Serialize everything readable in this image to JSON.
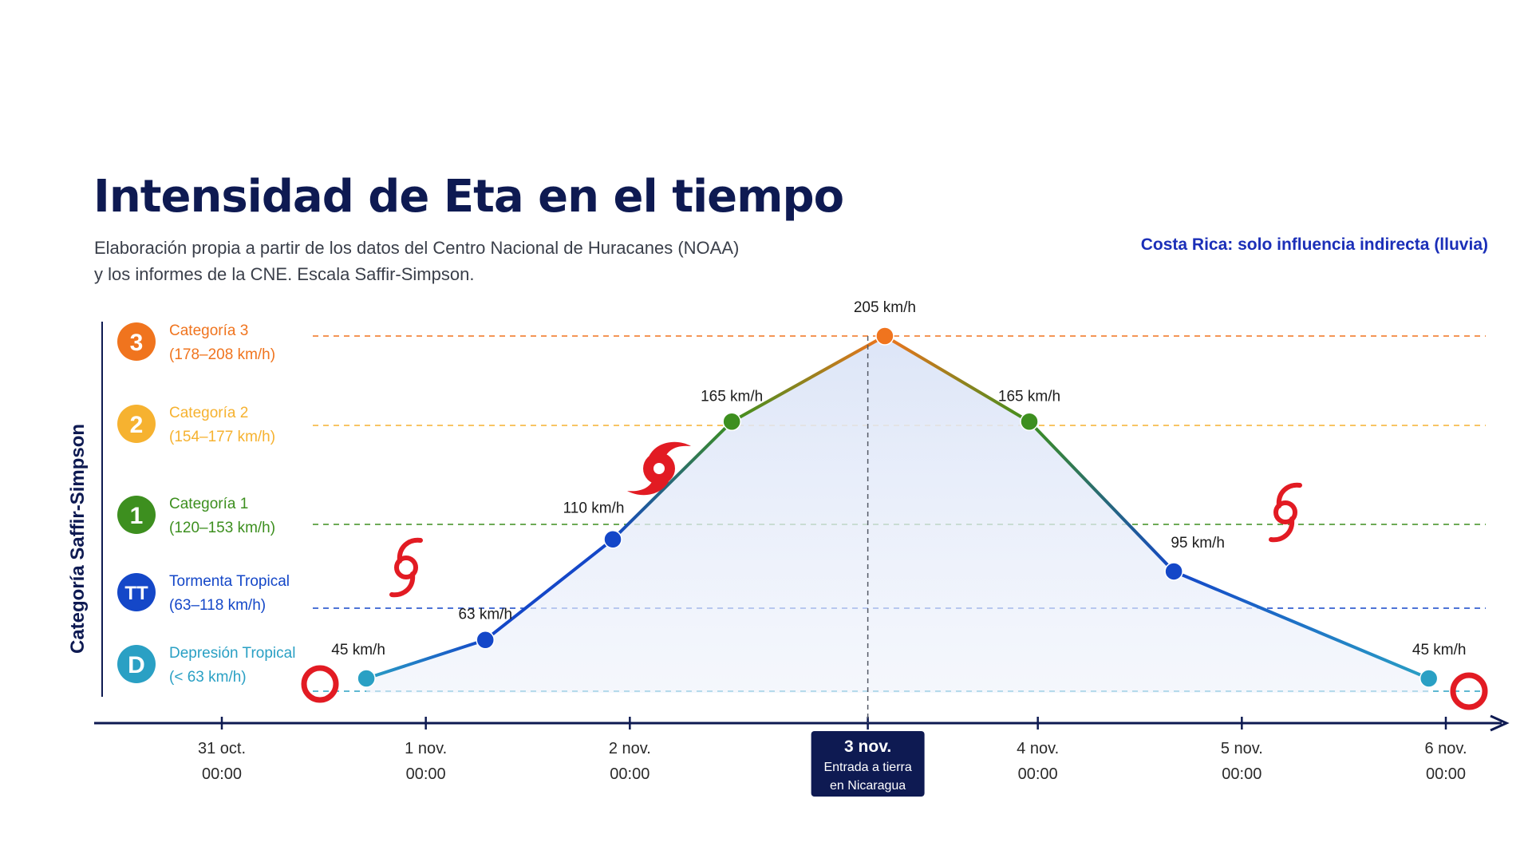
{
  "title": "Intensidad de Eta en el tiempo",
  "subtitle_lines": [
    "Elaboración propia a partir de los datos del Centro Nacional de Huracanes (NOAA)",
    "y los informes de la CNE. Escala Saffir-Simpson."
  ],
  "note": "Costa Rica: solo influencia indirecta (lluvia)",
  "colors": {
    "title": "#0e1a52",
    "cat3": "#f0741e",
    "cat2": "#f6b230",
    "cat1": "#3d8f1f",
    "tt": "#1447c8",
    "d": "#2aa0c4",
    "area_fill": "#e6edfa",
    "highlight_bg": "#0e1a52",
    "storm_icon": "#e21b23"
  },
  "chart_data": {
    "type": "line",
    "title": "Intensidad de Eta en el tiempo",
    "ylabel": "Categoría Saffir-Simpson",
    "xlabel": "",
    "x_ticks": [
      {
        "date": "31 oct.",
        "time": "00:00",
        "t": 0
      },
      {
        "date": "1 nov.",
        "time": "00:00",
        "t": 24
      },
      {
        "date": "2 nov.",
        "time": "00:00",
        "t": 48
      },
      {
        "date": "3 nov.",
        "time": "",
        "t": 76,
        "highlight": true,
        "note_lines": [
          "Entrada a tierra",
          "en Nicaragua"
        ]
      },
      {
        "date": "4 nov.",
        "time": "00:00",
        "t": 96
      },
      {
        "date": "5 nov.",
        "time": "00:00",
        "t": 120
      },
      {
        "date": "6 nov.",
        "time": "00:00",
        "t": 144
      }
    ],
    "categories": [
      {
        "badge": "3",
        "name": "Categoría 3",
        "range": "(178–208 km/h)",
        "color": "#f0741e",
        "level": 205
      },
      {
        "badge": "2",
        "name": "Categoría 2",
        "range": "(154–177 km/h)",
        "color": "#f6b230",
        "level": 165
      },
      {
        "badge": "1",
        "name": "Categoría 1",
        "range": "(120–153 km/h)",
        "color": "#3d8f1f",
        "level": 110
      },
      {
        "badge": "TT",
        "name": "Tormenta Tropical",
        "range": "(63–118 km/h)",
        "color": "#1447c8",
        "level": 63
      },
      {
        "badge": "D",
        "name": "Depresión Tropical",
        "range": "(< 63 km/h)",
        "color": "#2aa0c4",
        "level": 30
      }
    ],
    "points": [
      {
        "t": 17,
        "wind": 45,
        "label": "45 km/h",
        "color": "#2aa0c4",
        "icon": "low"
      },
      {
        "t": 31,
        "wind": 63,
        "label": "63 km/h",
        "color": "#1447c8",
        "icon": "storm"
      },
      {
        "t": 46,
        "wind": 110,
        "label": "110 km/h",
        "color": "#1447c8",
        "icon": "none"
      },
      {
        "t": 60,
        "wind": 165,
        "label": "165 km/h",
        "color": "#3d8f1f",
        "icon": "hurricane"
      },
      {
        "t": 78,
        "wind": 205,
        "label": "205 km/h",
        "color": "#f0741e",
        "icon": "none"
      },
      {
        "t": 95,
        "wind": 165,
        "label": "165 km/h",
        "color": "#3d8f1f",
        "icon": "none"
      },
      {
        "t": 112,
        "wind": 95,
        "label": "95 km/h",
        "color": "#1447c8",
        "icon": "storm"
      },
      {
        "t": 142,
        "wind": 45,
        "label": "45 km/h",
        "color": "#2aa0c4",
        "icon": "low"
      }
    ]
  }
}
